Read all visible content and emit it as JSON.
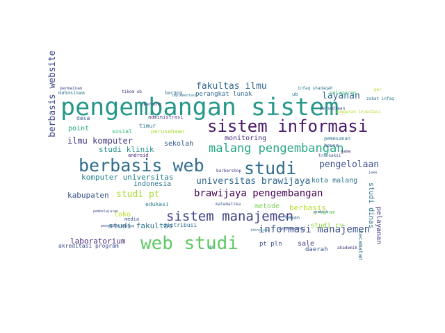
{
  "words": [
    {
      "text": "pengembangan sistem",
      "color": "#26988a"
    },
    {
      "text": "sistem informasi",
      "color": "#48186a"
    },
    {
      "text": "berbasis web",
      "color": "#2f6d8e"
    },
    {
      "text": "web studi",
      "color": "#5ec962"
    },
    {
      "text": "studi",
      "color": "#2f6d8e"
    },
    {
      "text": "malang pengembangan",
      "color": "#25a784"
    },
    {
      "text": "sistem manajemen",
      "color": "#414487"
    },
    {
      "text": "universitas brawijaya",
      "color": "#31688e"
    },
    {
      "text": "brawijaya pengembangan",
      "color": "#440154"
    },
    {
      "text": "informasi manajemen",
      "color": "#3b528b"
    },
    {
      "text": "fakultas ilmu",
      "color": "#31688e"
    },
    {
      "text": "komputer universitas",
      "color": "#26828e"
    },
    {
      "text": "pengelolaan",
      "color": "#3b528b"
    },
    {
      "text": "laboratorium",
      "color": "#482878"
    },
    {
      "text": "studi fakultas",
      "color": "#2c728e"
    },
    {
      "text": "berbasis website",
      "color": "#3e4989"
    },
    {
      "text": "studi klinik",
      "color": "#21918c"
    },
    {
      "text": "ilmu komputer",
      "color": "#443983"
    },
    {
      "text": "studi pt",
      "color": "#addc30"
    },
    {
      "text": "kabupaten",
      "color": "#3b528b"
    },
    {
      "text": "layanan",
      "color": "#31688e"
    },
    {
      "text": "kota malang",
      "color": "#2a788e"
    },
    {
      "text": "sekolah",
      "color": "#38588c"
    },
    {
      "text": "monitoring",
      "color": "#472c7a"
    },
    {
      "text": "indonesia",
      "color": "#2a788e"
    },
    {
      "text": "metode",
      "color": "#7ad151"
    },
    {
      "text": "berbasis",
      "color": "#b5de2b"
    },
    {
      "text": "point",
      "color": "#22a884"
    },
    {
      "text": "toko",
      "color": "#bddf26"
    },
    {
      "text": "studi cv",
      "color": "#90d743"
    },
    {
      "text": "studi dinas",
      "color": "#2c728e"
    },
    {
      "text": "pelayanan",
      "color": "#433e85"
    },
    {
      "text": "sale",
      "color": "#46337e"
    },
    {
      "text": "pt pln",
      "color": "#3b528b"
    },
    {
      "text": "perangkat lunak",
      "color": "#31688e"
    },
    {
      "text": "akreditasi program",
      "color": "#3e4a89"
    },
    {
      "text": "distribusi",
      "color": "#2e6f8e"
    },
    {
      "text": "desa",
      "color": "#3b528b"
    },
    {
      "text": "sosial",
      "color": "#35b779"
    },
    {
      "text": "kecamatan",
      "color": "#2c728e"
    },
    {
      "text": "daerah",
      "color": "#3b528b"
    },
    {
      "text": "edukasi",
      "color": "#2a788e"
    },
    {
      "text": "timur",
      "color": "#2a788e"
    },
    {
      "text": "mahasiswa",
      "color": "#2a788e"
    },
    {
      "text": "barang",
      "color": "#31688e"
    },
    {
      "text": "administrasi",
      "color": "#46327e"
    },
    {
      "text": "perusahaan",
      "color": "#a8db34"
    },
    {
      "text": "android",
      "color": "#482374"
    },
    {
      "text": "media",
      "color": "#3e4c8a"
    },
    {
      "text": "hewan",
      "color": "#31688e"
    },
    {
      "text": "ub",
      "color": "#2c728e"
    },
    {
      "text": "pemesanan",
      "color": "#2a788e"
    },
    {
      "text": "pelaporan",
      "color": "#35b779"
    },
    {
      "text": "infaq shadaqah",
      "color": "#2a788e"
    },
    {
      "text": "program",
      "color": "#5ec962"
    },
    {
      "text": "learning",
      "color": "#46307e"
    },
    {
      "text": "permainan",
      "color": "#3e4989"
    },
    {
      "text": "house",
      "color": "#3b528b"
    },
    {
      "text": "game",
      "color": "#46337e"
    },
    {
      "text": "transaksi",
      "color": "#3b528b"
    },
    {
      "text": "tikom ub",
      "color": "#46307e"
    },
    {
      "text": "matematika",
      "color": "#3b528b"
    },
    {
      "text": "barbershop",
      "color": "#46327e"
    },
    {
      "text": "zonymawangi",
      "color": "#3b528b"
    },
    {
      "text": "akademik",
      "color": "#46327e"
    },
    {
      "text": "teknologi",
      "color": "#2a788e"
    },
    {
      "text": "pembelajaran",
      "color": "#3b528b"
    },
    {
      "text": "pengadaan barang",
      "color": "#3b528b"
    },
    {
      "text": "implementasi",
      "color": "#2a788e"
    },
    {
      "text": "anggaran investasi",
      "color": "#b5de2b"
    },
    {
      "text": "zakat infaq",
      "color": "#2a788e"
    },
    {
      "text": "persediaan",
      "color": "#3b528b"
    },
    {
      "text": "praktik",
      "color": "#3b528b"
    },
    {
      "text": "dr",
      "color": "#2a788e"
    },
    {
      "text": "per",
      "color": "#b5de2b"
    },
    {
      "text": "jawa",
      "color": "#3b528b"
    }
  ]
}
